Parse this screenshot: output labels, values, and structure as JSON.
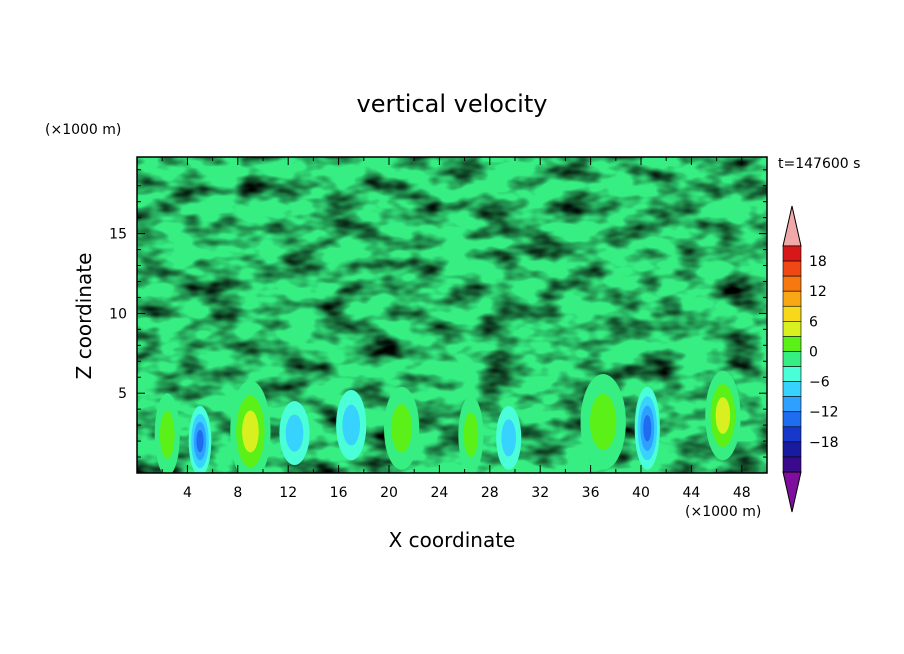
{
  "chart_data": {
    "type": "heatmap",
    "title": "vertical velocity",
    "xlabel": "X coordinate",
    "ylabel": "Z coordinate",
    "x_unit": "(×1000 m)",
    "y_unit": "(×1000 m)",
    "time_label": "t=147600 s",
    "xlim": [
      0,
      50
    ],
    "ylim": [
      0,
      19.8
    ],
    "xticks": [
      "4",
      "8",
      "12",
      "16",
      "20",
      "24",
      "28",
      "32",
      "36",
      "40",
      "44",
      "48"
    ],
    "yticks": [
      "5",
      "10",
      "15"
    ],
    "colorbar": {
      "levels": [
        -21,
        -18,
        -15,
        -12,
        -9,
        -6,
        -3,
        0,
        3,
        6,
        9,
        12,
        15,
        18,
        21
      ],
      "tick_labels": [
        "18",
        "12",
        "6",
        "0",
        "−6",
        "−12",
        "−18"
      ],
      "colors": [
        "#3a0a8c",
        "#1a1aa0",
        "#1838cc",
        "#1e6cf0",
        "#2ea0ff",
        "#38d2ff",
        "#4affd8",
        "#36ee82",
        "#5af018",
        "#d8f020",
        "#f8d81a",
        "#f8a814",
        "#f87810",
        "#f04814",
        "#d81818"
      ],
      "over_color": "#f0a8a8",
      "under_color": "#7f0e9f"
    },
    "features": [
      {
        "x": 2.4,
        "z": 2.4,
        "w": 1.0,
        "h": 2.6,
        "peak": 8
      },
      {
        "x": 5.0,
        "z": 2.0,
        "w": 0.9,
        "h": 2.2,
        "peak": -12
      },
      {
        "x": 9.0,
        "z": 2.6,
        "w": 1.6,
        "h": 3.2,
        "peak": 10
      },
      {
        "x": 12.5,
        "z": 2.5,
        "w": 1.2,
        "h": 2.0,
        "peak": -6
      },
      {
        "x": 17.0,
        "z": 3.0,
        "w": 1.2,
        "h": 2.2,
        "peak": -8
      },
      {
        "x": 21.0,
        "z": 2.8,
        "w": 1.4,
        "h": 2.6,
        "peak": 6
      },
      {
        "x": 26.5,
        "z": 2.4,
        "w": 1.0,
        "h": 2.4,
        "peak": 8
      },
      {
        "x": 29.5,
        "z": 2.2,
        "w": 1.0,
        "h": 2.0,
        "peak": -8
      },
      {
        "x": 37.0,
        "z": 3.2,
        "w": 1.8,
        "h": 3.0,
        "peak": 7
      },
      {
        "x": 40.5,
        "z": 2.8,
        "w": 1.0,
        "h": 2.6,
        "peak": -12
      },
      {
        "x": 46.5,
        "z": 3.6,
        "w": 1.4,
        "h": 2.8,
        "peak": 9
      }
    ]
  }
}
